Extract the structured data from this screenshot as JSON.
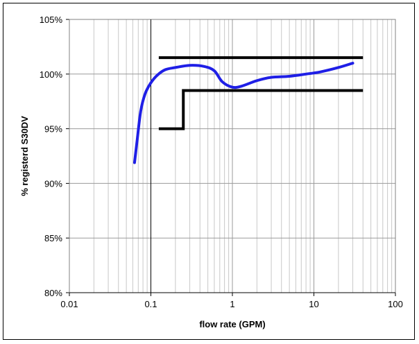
{
  "chart_data": {
    "type": "line",
    "title": "",
    "xlabel": "flow rate (GPM)",
    "ylabel": "% registerd S30DV",
    "x_scale": "log",
    "xlim": [
      0.01,
      100
    ],
    "ylim": [
      80,
      105
    ],
    "x_ticks": [
      0.01,
      0.1,
      1,
      10,
      100
    ],
    "x_tick_labels": [
      "0.01",
      "0.1",
      "1",
      "10",
      "100"
    ],
    "y_ticks": [
      80,
      85,
      90,
      95,
      100,
      105
    ],
    "y_tick_labels": [
      "80%",
      "85%",
      "90%",
      "95%",
      "100%",
      "105%"
    ],
    "grid": true,
    "legend": "none",
    "colors": {
      "accuracy_curve": "#1f1fe6",
      "limit_lines": "#000000",
      "grid": "#c8c8c8"
    },
    "series": [
      {
        "role": "accuracy_curve",
        "x": [
          0.063,
          0.068,
          0.075,
          0.085,
          0.1,
          0.12,
          0.15,
          0.2,
          0.3,
          0.45,
          0.6,
          0.75,
          1.0,
          1.3,
          2.0,
          3.0,
          5.0,
          8.0,
          12.0,
          20.0,
          30.0
        ],
        "y": [
          91.9,
          94.0,
          96.6,
          98.2,
          99.2,
          99.9,
          100.4,
          100.6,
          100.8,
          100.7,
          100.3,
          99.3,
          98.8,
          98.9,
          99.4,
          99.7,
          99.8,
          100.0,
          100.2,
          100.6,
          101.0
        ]
      },
      {
        "role": "upper_limit",
        "x": [
          0.125,
          40
        ],
        "y": [
          101.5,
          101.5
        ]
      },
      {
        "role": "lower_limit",
        "x": [
          0.125,
          0.25,
          0.25,
          40
        ],
        "y": [
          95.0,
          95.0,
          98.5,
          98.5
        ]
      }
    ]
  }
}
